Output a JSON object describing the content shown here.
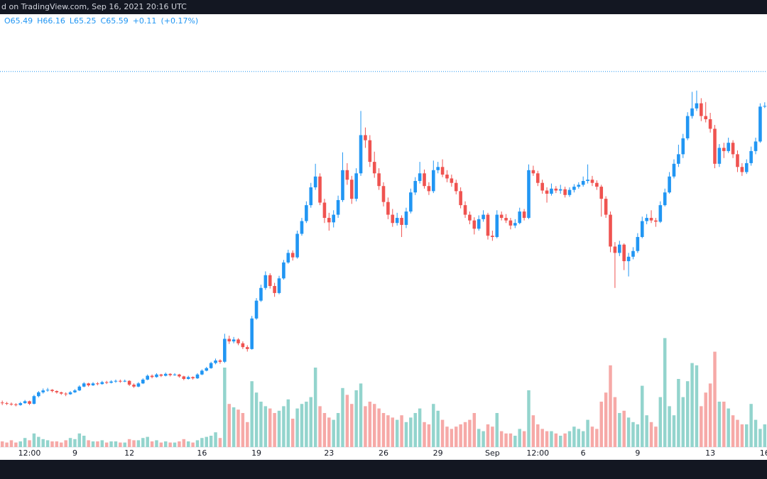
{
  "header": {
    "text": "d on TradingView.com, Sep 16, 2021 20:16 UTC"
  },
  "legend": [
    "O65.49",
    "H66.16",
    "L65.25",
    "C65.59",
    "+0.11",
    "(+0.17%)"
  ],
  "chart_data": {
    "type": "candlestick",
    "up_color": "#2196f3",
    "down_color": "#ef5350",
    "volume_up_color": "#93d4cd",
    "volume_down_color": "#f6a9a7",
    "ylim": [
      12,
      80
    ],
    "volume_ylim": [
      0,
      100
    ],
    "price_line": 71,
    "categories": [
      null,
      null,
      null,
      null,
      null,
      null,
      "12:00",
      null,
      null,
      null,
      null,
      null,
      null,
      null,
      null,
      null,
      "9",
      null,
      null,
      null,
      null,
      null,
      null,
      null,
      null,
      null,
      null,
      null,
      "12",
      null,
      null,
      null,
      null,
      null,
      null,
      null,
      null,
      null,
      null,
      null,
      null,
      null,
      null,
      null,
      "16",
      null,
      null,
      null,
      null,
      null,
      null,
      null,
      null,
      null,
      null,
      null,
      "19",
      null,
      null,
      null,
      null,
      null,
      null,
      null,
      null,
      null,
      null,
      null,
      null,
      null,
      null,
      null,
      "23",
      null,
      null,
      null,
      null,
      null,
      null,
      null,
      null,
      null,
      null,
      null,
      "26",
      null,
      null,
      null,
      null,
      null,
      null,
      null,
      null,
      null,
      null,
      null,
      "29",
      null,
      null,
      null,
      null,
      null,
      null,
      null,
      null,
      null,
      null,
      null,
      "Sep",
      null,
      null,
      null,
      null,
      null,
      null,
      null,
      null,
      null,
      "12:00",
      null,
      null,
      null,
      null,
      null,
      null,
      null,
      null,
      null,
      "6",
      null,
      null,
      null,
      null,
      null,
      null,
      null,
      null,
      null,
      null,
      null,
      "9",
      null,
      null,
      null,
      null,
      null,
      null,
      null,
      null,
      null,
      null,
      null,
      null,
      null,
      null,
      null,
      "13",
      null,
      null,
      null,
      null,
      null,
      null,
      null,
      null,
      null,
      null,
      null,
      "16"
    ],
    "candles": [
      [
        19.0,
        19.3,
        18.6,
        18.9
      ],
      [
        18.9,
        19.1,
        18.6,
        18.8
      ],
      [
        18.8,
        19.0,
        18.5,
        18.7
      ],
      [
        18.7,
        18.9,
        18.4,
        18.6
      ],
      [
        18.6,
        19.1,
        18.5,
        18.9
      ],
      [
        18.9,
        19.4,
        18.8,
        19.2
      ],
      [
        19.2,
        19.3,
        18.6,
        18.8
      ],
      [
        18.8,
        20.2,
        18.7,
        20.0
      ],
      [
        20.0,
        20.8,
        19.8,
        20.6
      ],
      [
        20.6,
        21.2,
        20.4,
        20.9
      ],
      [
        20.9,
        21.3,
        20.7,
        21.0
      ],
      [
        21.0,
        21.1,
        20.6,
        20.8
      ],
      [
        20.8,
        20.9,
        20.4,
        20.6
      ],
      [
        20.6,
        20.7,
        20.2,
        20.4
      ],
      [
        20.4,
        20.6,
        20.0,
        20.3
      ],
      [
        20.3,
        20.8,
        20.2,
        20.6
      ],
      [
        20.6,
        21.1,
        20.5,
        20.9
      ],
      [
        20.9,
        21.7,
        20.8,
        21.5
      ],
      [
        21.5,
        22.2,
        21.4,
        22.0
      ],
      [
        22.0,
        22.1,
        21.5,
        21.7
      ],
      [
        21.7,
        22.2,
        21.6,
        22.0
      ],
      [
        22.0,
        22.2,
        21.7,
        21.9
      ],
      [
        21.9,
        22.4,
        21.8,
        22.2
      ],
      [
        22.2,
        22.4,
        21.9,
        22.1
      ],
      [
        22.1,
        22.5,
        22.0,
        22.3
      ],
      [
        22.3,
        22.6,
        22.1,
        22.4
      ],
      [
        22.4,
        22.6,
        22.1,
        22.3
      ],
      [
        22.3,
        22.6,
        22.2,
        22.4
      ],
      [
        22.4,
        22.5,
        21.6,
        21.8
      ],
      [
        21.8,
        22.0,
        21.3,
        21.5
      ],
      [
        21.5,
        22.2,
        21.4,
        22.0
      ],
      [
        22.0,
        22.8,
        21.9,
        22.6
      ],
      [
        22.6,
        23.4,
        22.5,
        23.2
      ],
      [
        23.2,
        23.4,
        22.8,
        23.0
      ],
      [
        23.0,
        23.6,
        22.9,
        23.4
      ],
      [
        23.4,
        23.5,
        23.0,
        23.2
      ],
      [
        23.2,
        23.7,
        23.1,
        23.5
      ],
      [
        23.5,
        23.6,
        23.1,
        23.3
      ],
      [
        23.3,
        23.6,
        23.2,
        23.4
      ],
      [
        23.4,
        23.5,
        22.9,
        23.1
      ],
      [
        23.1,
        23.2,
        22.5,
        22.7
      ],
      [
        22.7,
        23.2,
        22.6,
        23.0
      ],
      [
        23.0,
        23.1,
        22.6,
        22.8
      ],
      [
        22.8,
        23.6,
        22.7,
        23.4
      ],
      [
        23.4,
        24.2,
        23.3,
        24.0
      ],
      [
        24.0,
        24.6,
        23.9,
        24.4
      ],
      [
        24.4,
        25.4,
        24.3,
        25.2
      ],
      [
        25.2,
        25.9,
        25.0,
        25.6
      ],
      [
        25.6,
        25.8,
        25.1,
        25.4
      ],
      [
        25.4,
        29.8,
        25.2,
        29.0
      ],
      [
        29.0,
        29.5,
        28.2,
        28.6
      ],
      [
        28.6,
        29.3,
        28.3,
        28.9
      ],
      [
        28.9,
        29.1,
        28.0,
        28.3
      ],
      [
        28.3,
        28.6,
        27.4,
        27.7
      ],
      [
        27.7,
        28.0,
        27.0,
        27.4
      ],
      [
        27.4,
        32.6,
        27.3,
        32.2
      ],
      [
        32.2,
        35.4,
        32.0,
        35.0
      ],
      [
        35.0,
        37.5,
        34.8,
        37.0
      ],
      [
        37.0,
        39.6,
        36.7,
        39.0
      ],
      [
        39.0,
        39.3,
        36.9,
        37.3
      ],
      [
        37.3,
        37.8,
        35.6,
        36.2
      ],
      [
        36.2,
        38.9,
        36.0,
        38.5
      ],
      [
        38.5,
        41.4,
        38.3,
        41.0
      ],
      [
        41.0,
        43.0,
        40.8,
        42.5
      ],
      [
        42.5,
        42.9,
        41.3,
        41.8
      ],
      [
        41.8,
        46.0,
        41.6,
        45.5
      ],
      [
        45.5,
        48.0,
        45.2,
        47.5
      ],
      [
        47.5,
        50.6,
        47.2,
        50.0
      ],
      [
        50.0,
        53.5,
        49.6,
        52.8
      ],
      [
        52.8,
        56.5,
        52.4,
        54.5
      ],
      [
        54.5,
        55.0,
        50.0,
        50.4
      ],
      [
        50.4,
        51.0,
        47.2,
        48.0
      ],
      [
        48.0,
        48.8,
        46.0,
        47.3
      ],
      [
        47.3,
        49.2,
        46.5,
        48.5
      ],
      [
        48.5,
        51.5,
        48.0,
        50.8
      ],
      [
        50.8,
        58.3,
        50.5,
        55.5
      ],
      [
        55.5,
        56.6,
        53.2,
        54.0
      ],
      [
        54.0,
        54.6,
        50.2,
        51.0
      ],
      [
        51.0,
        55.8,
        50.6,
        55.0
      ],
      [
        55.0,
        64.8,
        54.6,
        61.0
      ],
      [
        61.0,
        62.2,
        59.0,
        60.2
      ],
      [
        60.2,
        61.0,
        56.0,
        56.8
      ],
      [
        56.8,
        58.4,
        54.3,
        55.0
      ],
      [
        55.0,
        55.8,
        52.4,
        53.0
      ],
      [
        53.0,
        53.6,
        49.8,
        50.5
      ],
      [
        50.5,
        51.2,
        47.8,
        48.5
      ],
      [
        48.5,
        49.4,
        46.6,
        47.2
      ],
      [
        47.2,
        48.8,
        46.8,
        48.0
      ],
      [
        48.0,
        48.4,
        45.0,
        46.9
      ],
      [
        46.9,
        49.6,
        46.4,
        49.0
      ],
      [
        49.0,
        52.6,
        48.7,
        52.0
      ],
      [
        52.0,
        54.4,
        51.6,
        53.8
      ],
      [
        53.8,
        56.8,
        53.4,
        55.0
      ],
      [
        55.0,
        55.6,
        52.6,
        53.0
      ],
      [
        53.0,
        53.6,
        51.6,
        52.2
      ],
      [
        52.2,
        57.0,
        51.9,
        55.5
      ],
      [
        55.5,
        56.8,
        55.0,
        56.0
      ],
      [
        56.0,
        57.2,
        54.4,
        54.8
      ],
      [
        54.8,
        55.5,
        53.6,
        54.2
      ],
      [
        54.2,
        54.8,
        52.9,
        53.5
      ],
      [
        53.5,
        54.0,
        51.7,
        52.2
      ],
      [
        52.2,
        52.8,
        49.5,
        50.0
      ],
      [
        50.0,
        50.6,
        48.0,
        48.5
      ],
      [
        48.5,
        49.0,
        47.0,
        47.6
      ],
      [
        47.6,
        48.1,
        45.4,
        46.3
      ],
      [
        46.3,
        48.4,
        46.0,
        47.8
      ],
      [
        47.8,
        49.2,
        47.4,
        48.5
      ],
      [
        48.5,
        48.8,
        44.6,
        45.2
      ],
      [
        45.2,
        46.0,
        44.4,
        45.0
      ],
      [
        45.0,
        49.2,
        44.8,
        48.5
      ],
      [
        48.5,
        49.0,
        47.6,
        48.0
      ],
      [
        48.0,
        48.6,
        47.2,
        47.6
      ],
      [
        47.6,
        48.0,
        46.2,
        46.8
      ],
      [
        46.8,
        47.8,
        46.4,
        47.2
      ],
      [
        47.2,
        49.6,
        47.0,
        49.0
      ],
      [
        49.0,
        49.4,
        47.6,
        48.0
      ],
      [
        48.0,
        56.4,
        47.8,
        55.5
      ],
      [
        55.5,
        56.2,
        54.6,
        55.0
      ],
      [
        55.0,
        55.4,
        53.0,
        53.5
      ],
      [
        53.5,
        54.0,
        51.8,
        52.3
      ],
      [
        52.3,
        52.8,
        50.4,
        51.8
      ],
      [
        51.8,
        53.4,
        51.5,
        52.6
      ],
      [
        52.6,
        53.0,
        51.9,
        52.3
      ],
      [
        52.3,
        53.2,
        51.8,
        52.5
      ],
      [
        52.5,
        52.9,
        51.2,
        51.6
      ],
      [
        51.6,
        52.8,
        51.3,
        52.4
      ],
      [
        52.4,
        53.3,
        52.0,
        52.9
      ],
      [
        52.9,
        53.6,
        52.6,
        53.2
      ],
      [
        53.2,
        54.5,
        52.9,
        53.8
      ],
      [
        53.8,
        56.4,
        53.4,
        54.0
      ],
      [
        54.0,
        54.6,
        53.0,
        53.5
      ],
      [
        53.5,
        53.9,
        52.4,
        52.9
      ],
      [
        52.9,
        53.2,
        48.2,
        51.0
      ],
      [
        51.0,
        51.4,
        48.0,
        48.5
      ],
      [
        48.5,
        49.0,
        42.6,
        43.5
      ],
      [
        43.5,
        44.2,
        37.0,
        42.5
      ],
      [
        42.5,
        44.4,
        42.0,
        43.8
      ],
      [
        43.8,
        44.0,
        39.8,
        41.2
      ],
      [
        41.2,
        42.5,
        38.8,
        41.9
      ],
      [
        41.9,
        43.4,
        41.5,
        42.8
      ],
      [
        42.8,
        45.6,
        42.5,
        45.0
      ],
      [
        45.0,
        48.2,
        44.8,
        47.5
      ],
      [
        47.5,
        48.6,
        47.0,
        48.0
      ],
      [
        48.0,
        49.2,
        47.2,
        47.6
      ],
      [
        47.6,
        48.0,
        46.6,
        47.4
      ],
      [
        47.4,
        50.6,
        47.2,
        50.0
      ],
      [
        50.0,
        52.6,
        49.8,
        52.0
      ],
      [
        52.0,
        55.2,
        51.8,
        54.5
      ],
      [
        54.5,
        57.2,
        54.2,
        56.5
      ],
      [
        56.5,
        59.5,
        56.0,
        58.0
      ],
      [
        58.0,
        61.2,
        57.4,
        60.5
      ],
      [
        60.5,
        64.6,
        60.2,
        64.0
      ],
      [
        64.0,
        67.8,
        63.6,
        65.2
      ],
      [
        65.2,
        68.0,
        64.8,
        66.0
      ],
      [
        66.0,
        66.8,
        63.2,
        64.0
      ],
      [
        64.0,
        66.2,
        63.0,
        63.5
      ],
      [
        63.5,
        64.5,
        61.4,
        62.0
      ],
      [
        62.0,
        62.6,
        55.8,
        56.5
      ],
      [
        56.5,
        59.6,
        56.0,
        59.0
      ],
      [
        59.0,
        59.8,
        57.4,
        58.5
      ],
      [
        58.5,
        60.6,
        58.2,
        59.8
      ],
      [
        59.8,
        60.2,
        57.4,
        58.0
      ],
      [
        58.0,
        58.6,
        55.2,
        56.0
      ],
      [
        56.0,
        56.6,
        54.6,
        55.2
      ],
      [
        55.2,
        57.2,
        54.9,
        56.6
      ],
      [
        56.6,
        59.2,
        56.2,
        58.5
      ],
      [
        58.5,
        60.6,
        58.0,
        60.0
      ],
      [
        60.0,
        66.0,
        59.8,
        65.48
      ],
      [
        65.49,
        66.16,
        65.25,
        65.59
      ]
    ],
    "volume": [
      5,
      4,
      6,
      4,
      5,
      8,
      6,
      12,
      9,
      7,
      6,
      5,
      5,
      4,
      6,
      8,
      7,
      12,
      10,
      6,
      5,
      5,
      6,
      4,
      5,
      5,
      4,
      4,
      7,
      6,
      6,
      8,
      9,
      5,
      6,
      4,
      5,
      4,
      4,
      5,
      7,
      5,
      4,
      6,
      8,
      9,
      10,
      13,
      8,
      70,
      38,
      35,
      33,
      30,
      22,
      58,
      48,
      40,
      36,
      34,
      30,
      32,
      36,
      42,
      25,
      34,
      38,
      40,
      44,
      70,
      36,
      30,
      26,
      24,
      30,
      52,
      46,
      38,
      50,
      56,
      36,
      40,
      38,
      34,
      30,
      28,
      26,
      24,
      28,
      22,
      26,
      30,
      34,
      22,
      20,
      38,
      32,
      24,
      18,
      16,
      18,
      20,
      22,
      24,
      30,
      16,
      14,
      20,
      18,
      30,
      14,
      12,
      12,
      10,
      16,
      14,
      50,
      28,
      20,
      16,
      14,
      14,
      12,
      10,
      12,
      14,
      18,
      16,
      14,
      24,
      18,
      16,
      40,
      48,
      72,
      44,
      30,
      32,
      26,
      22,
      20,
      54,
      28,
      22,
      18,
      44,
      96,
      36,
      28,
      60,
      44,
      58,
      74,
      72,
      36,
      48,
      56,
      84,
      40,
      40,
      34,
      28,
      24,
      20,
      20,
      38,
      24,
      16,
      20
    ]
  }
}
